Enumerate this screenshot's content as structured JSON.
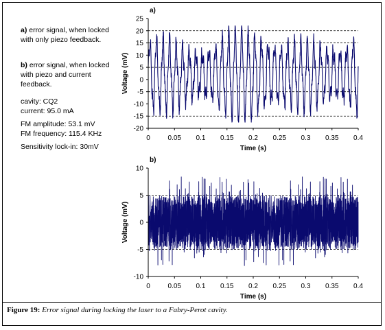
{
  "notes": {
    "a_label": "a)",
    "a_text_1": "error signal, when locked",
    "a_text_2": "with only piezo feedback.",
    "b_label": "b)",
    "b_text_1": "error signal, when locked",
    "b_text_2": "with piezo and current",
    "b_text_3": "feedback.",
    "cavity": "cavity: CQ2",
    "current": "current: 95.0 mA",
    "fm_amplitude": "FM amplitude: 53.1 mV",
    "fm_frequency": "FM frequency: 115.4 KHz",
    "sensitivity": "Sensitivity lock-in: 30mV"
  },
  "caption": {
    "label": "Figure 19:",
    "text": "Error signal during locking the laser to a Fabry-Perot cavity."
  },
  "colors": {
    "trace": "#0a0a6e",
    "frame": "#000000"
  },
  "chart_data": [
    {
      "type": "line",
      "panel_label": "a)",
      "xlabel": "Time (s)",
      "ylabel": "Voltage (mV)",
      "xlim": [
        0,
        0.4
      ],
      "ylim": [
        -20,
        25
      ],
      "xticks": [
        "0",
        "0.05",
        "0.1",
        "0.15",
        "0.2",
        "0.25",
        "0.3",
        "0.35",
        "0.4"
      ],
      "yticks": [
        "25",
        "20",
        "15",
        "10",
        "5",
        "0",
        "-5",
        "-10",
        "-15",
        "-20"
      ],
      "grid": "dashed horizontal at 20, 15, 5, -5, -15",
      "series": [
        {
          "oscillation_frequency_hz": 80,
          "approx_range": [
            -17,
            22
          ],
          "typical_amplitude": 15
        }
      ]
    },
    {
      "type": "line",
      "panel_label": "b)",
      "xlabel": "Time (s)",
      "ylabel": "Voltage (mV)",
      "xlim": [
        0,
        0.4
      ],
      "ylim": [
        -10,
        10
      ],
      "xticks": [
        "0",
        "0.05",
        "0.1",
        "0.15",
        "0.2",
        "0.25",
        "0.3",
        "0.35",
        "0.4"
      ],
      "yticks": [
        "10",
        "5",
        "0",
        "-5",
        "-10"
      ],
      "grid": "dashed horizontal at 5, -5",
      "series": [
        {
          "noise_band": [
            -5,
            5
          ],
          "approx_range": [
            -8.5,
            8.5
          ]
        }
      ]
    }
  ]
}
